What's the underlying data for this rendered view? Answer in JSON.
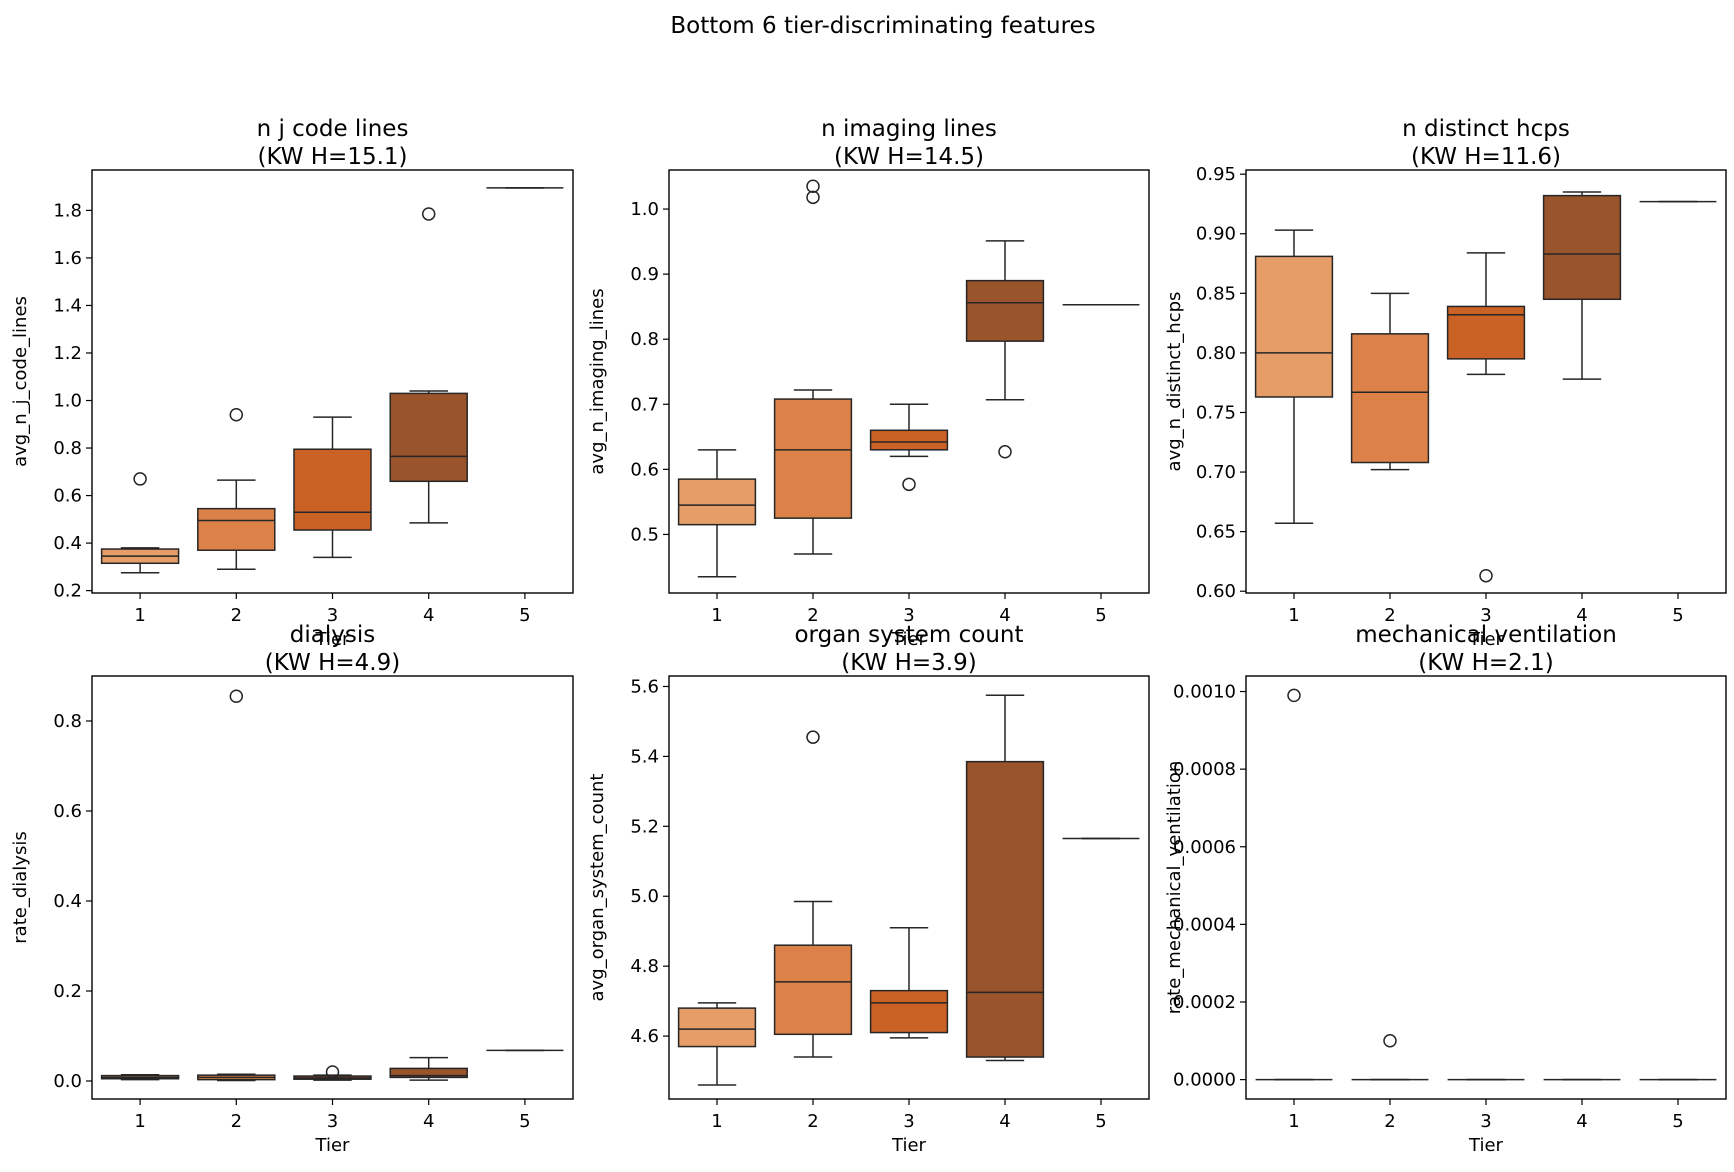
{
  "chart_data": {
    "type": "box",
    "suptitle": "Bottom 6 tier-discriminating features",
    "x_categories": [
      "1",
      "2",
      "3",
      "4",
      "5"
    ],
    "palette": [
      "#e69d68",
      "#dc8248",
      "#cb6225",
      "#9a542c",
      "#9a542c"
    ],
    "panels": [
      {
        "title_line1": "n j code lines",
        "title_line2": "(KW H=15.1)",
        "ylabel": "avg_n_j_code_lines",
        "xlabel": "Tier",
        "ylim": [
          0.19,
          1.97
        ],
        "yticks": [
          0.2,
          0.4,
          0.6,
          0.8,
          1.0,
          1.2,
          1.4,
          1.6,
          1.8
        ],
        "ytick_labels": [
          "0.2",
          "0.4",
          "0.6",
          "0.8",
          "1.0",
          "1.2",
          "1.4",
          "1.6",
          "1.8"
        ],
        "boxes": [
          {
            "tier": "1",
            "whislo": 0.275,
            "q1": 0.315,
            "med": 0.345,
            "q3": 0.375,
            "whishi": 0.38,
            "fliers": [
              0.67
            ]
          },
          {
            "tier": "2",
            "whislo": 0.29,
            "q1": 0.37,
            "med": 0.495,
            "q3": 0.545,
            "whishi": 0.665,
            "fliers": [
              0.94
            ]
          },
          {
            "tier": "3",
            "whislo": 0.34,
            "q1": 0.455,
            "med": 0.53,
            "q3": 0.795,
            "whishi": 0.93,
            "fliers": []
          },
          {
            "tier": "4",
            "whislo": 0.485,
            "q1": 0.66,
            "med": 0.765,
            "q3": 1.03,
            "whishi": 1.04,
            "fliers": [
              1.785
            ]
          },
          {
            "tier": "5",
            "whislo": 1.895,
            "q1": 1.895,
            "med": 1.895,
            "q3": 1.895,
            "whishi": 1.895,
            "fliers": []
          }
        ]
      },
      {
        "title_line1": "n imaging lines",
        "title_line2": "(KW H=14.5)",
        "ylabel": "avg_n_imaging_lines",
        "xlabel": "Tier",
        "ylim": [
          0.41,
          1.06
        ],
        "yticks": [
          0.5,
          0.6,
          0.7,
          0.8,
          0.9,
          1.0
        ],
        "ytick_labels": [
          "0.5",
          "0.6",
          "0.7",
          "0.8",
          "0.9",
          "1.0"
        ],
        "boxes": [
          {
            "tier": "1",
            "whislo": 0.435,
            "q1": 0.515,
            "med": 0.545,
            "q3": 0.585,
            "whishi": 0.63,
            "fliers": []
          },
          {
            "tier": "2",
            "whislo": 0.47,
            "q1": 0.525,
            "med": 0.63,
            "q3": 0.708,
            "whishi": 0.722,
            "fliers": [
              1.018,
              1.035
            ]
          },
          {
            "tier": "3",
            "whislo": 0.62,
            "q1": 0.63,
            "med": 0.642,
            "q3": 0.66,
            "whishi": 0.7,
            "fliers": [
              0.577
            ]
          },
          {
            "tier": "4",
            "whislo": 0.707,
            "q1": 0.797,
            "med": 0.856,
            "q3": 0.89,
            "whishi": 0.951,
            "fliers": [
              0.627
            ]
          },
          {
            "tier": "5",
            "whislo": 0.853,
            "q1": 0.853,
            "med": 0.853,
            "q3": 0.853,
            "whishi": 0.853,
            "fliers": []
          }
        ]
      },
      {
        "title_line1": "n distinct hcps",
        "title_line2": "(KW H=11.6)",
        "ylabel": "avg_n_distinct_hcps",
        "xlabel": "Tier",
        "ylim": [
          0.5985,
          0.9535
        ],
        "yticks": [
          0.6,
          0.65,
          0.7,
          0.75,
          0.8,
          0.85,
          0.9,
          0.95
        ],
        "ytick_labels": [
          "0.60",
          "0.65",
          "0.70",
          "0.75",
          "0.80",
          "0.85",
          "0.90",
          "0.95"
        ],
        "boxes": [
          {
            "tier": "1",
            "whislo": 0.657,
            "q1": 0.763,
            "med": 0.8,
            "q3": 0.881,
            "whishi": 0.903,
            "fliers": []
          },
          {
            "tier": "2",
            "whislo": 0.702,
            "q1": 0.708,
            "med": 0.767,
            "q3": 0.816,
            "whishi": 0.85,
            "fliers": []
          },
          {
            "tier": "3",
            "whislo": 0.782,
            "q1": 0.795,
            "med": 0.832,
            "q3": 0.839,
            "whishi": 0.884,
            "fliers": [
              0.613
            ]
          },
          {
            "tier": "4",
            "whislo": 0.778,
            "q1": 0.845,
            "med": 0.883,
            "q3": 0.932,
            "whishi": 0.935,
            "fliers": []
          },
          {
            "tier": "5",
            "whislo": 0.927,
            "q1": 0.927,
            "med": 0.927,
            "q3": 0.927,
            "whishi": 0.927,
            "fliers": []
          }
        ]
      },
      {
        "title_line1": "dialysis",
        "title_line2": "(KW H=4.9)",
        "ylabel": "rate_dialysis",
        "xlabel": "Tier",
        "ylim": [
          -0.04,
          0.9
        ],
        "yticks": [
          0.0,
          0.2,
          0.4,
          0.6,
          0.8
        ],
        "ytick_labels": [
          "0.0",
          "0.2",
          "0.4",
          "0.6",
          "0.8"
        ],
        "boxes": [
          {
            "tier": "1",
            "whislo": 0.003,
            "q1": 0.005,
            "med": 0.008,
            "q3": 0.012,
            "whishi": 0.014,
            "fliers": []
          },
          {
            "tier": "2",
            "whislo": 0.001,
            "q1": 0.003,
            "med": 0.008,
            "q3": 0.013,
            "whishi": 0.015,
            "fliers": [
              0.855
            ]
          },
          {
            "tier": "3",
            "whislo": 0.002,
            "q1": 0.004,
            "med": 0.007,
            "q3": 0.011,
            "whishi": 0.013,
            "fliers": [
              0.02
            ]
          },
          {
            "tier": "4",
            "whislo": 0.002,
            "q1": 0.008,
            "med": 0.012,
            "q3": 0.028,
            "whishi": 0.052,
            "fliers": []
          },
          {
            "tier": "5",
            "whislo": 0.068,
            "q1": 0.068,
            "med": 0.068,
            "q3": 0.068,
            "whishi": 0.068,
            "fliers": []
          }
        ]
      },
      {
        "title_line1": "organ system count",
        "title_line2": "(KW H=3.9)",
        "ylabel": "avg_organ_system_count",
        "xlabel": "Tier",
        "ylim": [
          4.42,
          5.63
        ],
        "yticks": [
          4.6,
          4.8,
          5.0,
          5.2,
          5.4,
          5.6
        ],
        "ytick_labels": [
          "4.6",
          "4.8",
          "5.0",
          "5.2",
          "5.4",
          "5.6"
        ],
        "boxes": [
          {
            "tier": "1",
            "whislo": 4.46,
            "q1": 4.57,
            "med": 4.62,
            "q3": 4.68,
            "whishi": 4.695,
            "fliers": []
          },
          {
            "tier": "2",
            "whislo": 4.54,
            "q1": 4.605,
            "med": 4.755,
            "q3": 4.86,
            "whishi": 4.985,
            "fliers": [
              5.455
            ]
          },
          {
            "tier": "3",
            "whislo": 4.595,
            "q1": 4.61,
            "med": 4.695,
            "q3": 4.73,
            "whishi": 4.91,
            "fliers": []
          },
          {
            "tier": "4",
            "whislo": 4.53,
            "q1": 4.54,
            "med": 4.725,
            "q3": 5.385,
            "whishi": 5.575,
            "fliers": []
          },
          {
            "tier": "5",
            "whislo": 5.165,
            "q1": 5.165,
            "med": 5.165,
            "q3": 5.165,
            "whishi": 5.165,
            "fliers": []
          }
        ]
      },
      {
        "title_line1": "mechanical ventilation",
        "title_line2": "(KW H=2.1)",
        "ylabel": "rate_mechanical_ventilation",
        "xlabel": "Tier",
        "ylim": [
          -5e-05,
          0.00104
        ],
        "yticks": [
          0.0,
          0.0002,
          0.0004,
          0.0006,
          0.0008,
          0.001
        ],
        "ytick_labels": [
          "0.0000",
          "0.0002",
          "0.0004",
          "0.0006",
          "0.0008",
          "0.0010"
        ],
        "boxes": [
          {
            "tier": "1",
            "whislo": 0,
            "q1": 0,
            "med": 0,
            "q3": 0,
            "whishi": 0,
            "fliers": [
              0.00099
            ]
          },
          {
            "tier": "2",
            "whislo": 0,
            "q1": 0,
            "med": 0,
            "q3": 0,
            "whishi": 0,
            "fliers": [
              0.0001
            ]
          },
          {
            "tier": "3",
            "whislo": 0,
            "q1": 0,
            "med": 0,
            "q3": 0,
            "whishi": 0,
            "fliers": []
          },
          {
            "tier": "4",
            "whislo": 0,
            "q1": 0,
            "med": 0,
            "q3": 0,
            "whishi": 0,
            "fliers": []
          },
          {
            "tier": "5",
            "whislo": 0,
            "q1": 0,
            "med": 0,
            "q3": 0,
            "whishi": 0,
            "fliers": []
          }
        ]
      }
    ]
  }
}
